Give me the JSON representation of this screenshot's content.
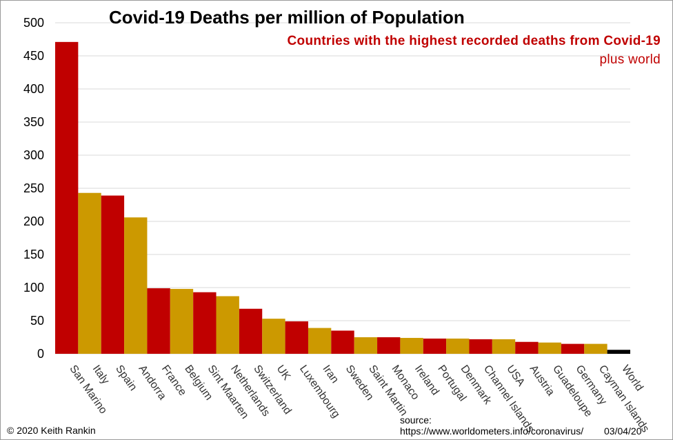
{
  "header": {
    "title": "Covid-19 Deaths per million of Population",
    "subtitle": "Countries with  the highest recorded deaths from Covid-19",
    "subtitle2": "plus  world"
  },
  "footer": {
    "copyright": "© 2020  Keith Rankin",
    "source_label": "source:",
    "source_url": "https://www.worldometers.info/coronavirus/",
    "date": "03/04/20"
  },
  "colors": {
    "red": "#c00000",
    "gold": "#cc9900",
    "black": "#000000",
    "grid": "#d9d9d9"
  },
  "chart_data": {
    "type": "bar",
    "title": "Covid-19 Deaths per million of Population",
    "subtitle": "Countries with  the highest recorded deaths from Covid-19",
    "xlabel": "",
    "ylabel": "",
    "ylim": [
      0,
      500
    ],
    "yticks": [
      0,
      50,
      100,
      150,
      200,
      250,
      300,
      350,
      400,
      450,
      500
    ],
    "grid": true,
    "categories": [
      "San Marino",
      "Italy",
      "Spain",
      "Andorra",
      "France",
      "Belgium",
      "Sint Maarten",
      "Netherlands",
      "Switzerland",
      "UK",
      "Luxembourg",
      "Iran",
      "Sweden",
      "Saint Martin",
      "Monaco",
      "Ireland",
      "Portugal",
      "Denmark",
      "Channel Islands",
      "USA",
      "Austria",
      "Guadeloupe",
      "Germany",
      "Cayman Islands",
      "World"
    ],
    "values": [
      471,
      243,
      239,
      206,
      99,
      98,
      93,
      87,
      68,
      53,
      49,
      39,
      35,
      25,
      25,
      24,
      23,
      23,
      22,
      22,
      18,
      17,
      15,
      15,
      6
    ],
    "bar_colors": [
      "red",
      "gold",
      "red",
      "gold",
      "red",
      "gold",
      "red",
      "gold",
      "red",
      "gold",
      "red",
      "gold",
      "red",
      "gold",
      "red",
      "gold",
      "red",
      "gold",
      "red",
      "gold",
      "red",
      "gold",
      "red",
      "gold",
      "black"
    ]
  }
}
